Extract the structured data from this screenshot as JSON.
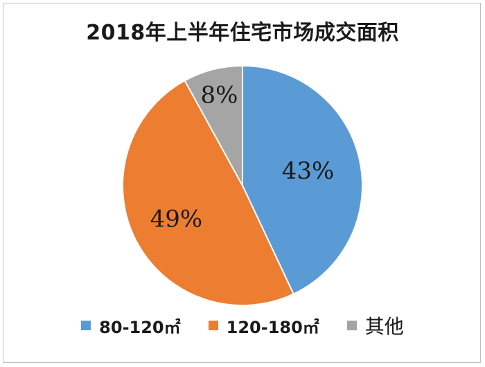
{
  "chart_data": {
    "type": "pie",
    "title": "2018年上半年住宅市场成交面积",
    "slices": [
      {
        "name": "80-120㎡",
        "value": 43,
        "label": "43%",
        "color": "#5b9bd5"
      },
      {
        "name": "120-180㎡",
        "value": 49,
        "label": "49%",
        "color": "#ed7d31"
      },
      {
        "name": "其他",
        "value": 8,
        "label": "8%",
        "color": "#a5a5a5"
      }
    ],
    "legend_position": "bottom",
    "start_angle": "top",
    "direction": "clockwise"
  }
}
